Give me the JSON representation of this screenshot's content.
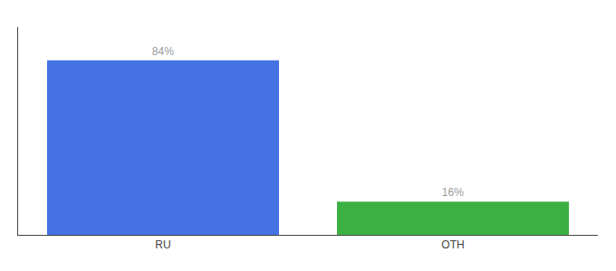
{
  "chart_data": {
    "type": "bar",
    "categories": [
      "RU",
      "OTH"
    ],
    "values": [
      84,
      16
    ],
    "value_labels": [
      "84%",
      "16%"
    ],
    "data_labels": true,
    "colors": [
      "#4472E3",
      "#3CB043"
    ],
    "ylim": [
      0,
      100
    ],
    "tick_labels": "x",
    "grid": false
  }
}
